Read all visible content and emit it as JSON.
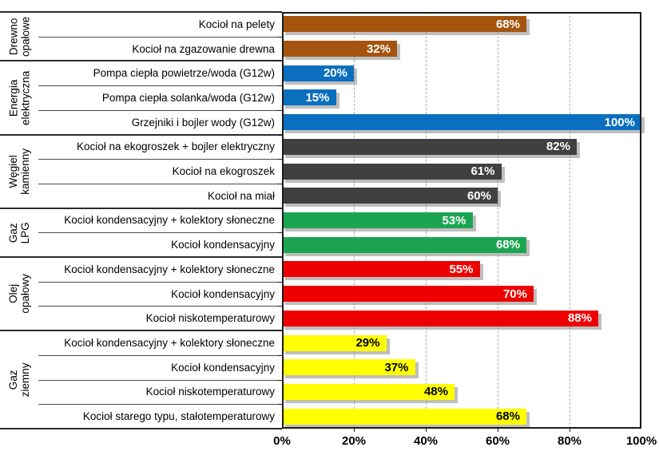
{
  "chart_data": {
    "type": "bar",
    "orientation": "horizontal",
    "title": "",
    "xlabel": "",
    "ylabel": "",
    "xlim": [
      0,
      100
    ],
    "x_ticks": [
      "0%",
      "20%",
      "40%",
      "60%",
      "80%",
      "100%"
    ],
    "grid": "vertical dashed gridlines every 20%",
    "legend": "none",
    "colors": {
      "background": "#FFFFFF",
      "gridline": "#ADADAD",
      "axis": "#1C1C1C",
      "bar_shadow": "#9E9E9E"
    },
    "groups": [
      {
        "label": "Drewno\nopałowe",
        "color": "#A4540F",
        "value_text_color": "#FFFFFF",
        "bars": [
          {
            "label": "Kocioł na pelety",
            "value": 68,
            "value_label": "68%"
          },
          {
            "label": "Kocioł na zgazowanie drewna",
            "value": 32,
            "value_label": "32%"
          }
        ]
      },
      {
        "label": "Energia\nelektryczna",
        "color": "#0B6FBF",
        "value_text_color": "#FFFFFF",
        "bars": [
          {
            "label": "Pompa ciepła powietrze/woda (G12w)",
            "value": 20,
            "value_label": "20%"
          },
          {
            "label": "Pompa ciepła solanka/woda (G12w)",
            "value": 15,
            "value_label": "15%"
          },
          {
            "label": "Grzejniki i bojler wody (G12w)",
            "value": 100,
            "value_label": "100%"
          }
        ]
      },
      {
        "label": "Węgiel\nkamienny",
        "color": "#404040",
        "value_text_color": "#FFFFFF",
        "bars": [
          {
            "label": "Kocioł na ekogroszek + bojler elektryczny",
            "value": 82,
            "value_label": "82%"
          },
          {
            "label": "Kocioł na ekogroszek",
            "value": 61,
            "value_label": "61%"
          },
          {
            "label": "Kocioł na miał",
            "value": 60,
            "value_label": "60%"
          }
        ]
      },
      {
        "label": "Gaz LPG",
        "color": "#1CA551",
        "value_text_color": "#FFFFFF",
        "bars": [
          {
            "label": "Kocioł kondensacyjny + kolektory słoneczne",
            "value": 53,
            "value_label": "53%"
          },
          {
            "label": "Kocioł kondensacyjny",
            "value": 68,
            "value_label": "68%"
          }
        ]
      },
      {
        "label": "Olej opałowy",
        "color": "#EE0000",
        "value_text_color": "#FFFFFF",
        "bars": [
          {
            "label": "Kocioł kondensacyjny + kolektory słoneczne",
            "value": 55,
            "value_label": "55%"
          },
          {
            "label": "Kocioł kondensacyjny",
            "value": 70,
            "value_label": "70%"
          },
          {
            "label": "Kocioł niskotemperaturowy",
            "value": 88,
            "value_label": "88%"
          }
        ]
      },
      {
        "label": "Gaz ziemny",
        "color": "#FFFF00",
        "value_text_color": "#000000",
        "bars": [
          {
            "label": "Kocioł kondensacyjny + kolektory słoneczne",
            "value": 29,
            "value_label": "29%"
          },
          {
            "label": "Kocioł kondensacyjny",
            "value": 37,
            "value_label": "37%"
          },
          {
            "label": "Kocioł niskotemperaturowy",
            "value": 48,
            "value_label": "48%"
          },
          {
            "label": "Kocioł starego typu, stałotemperaturowy",
            "value": 68,
            "value_label": "68%"
          }
        ]
      }
    ]
  }
}
